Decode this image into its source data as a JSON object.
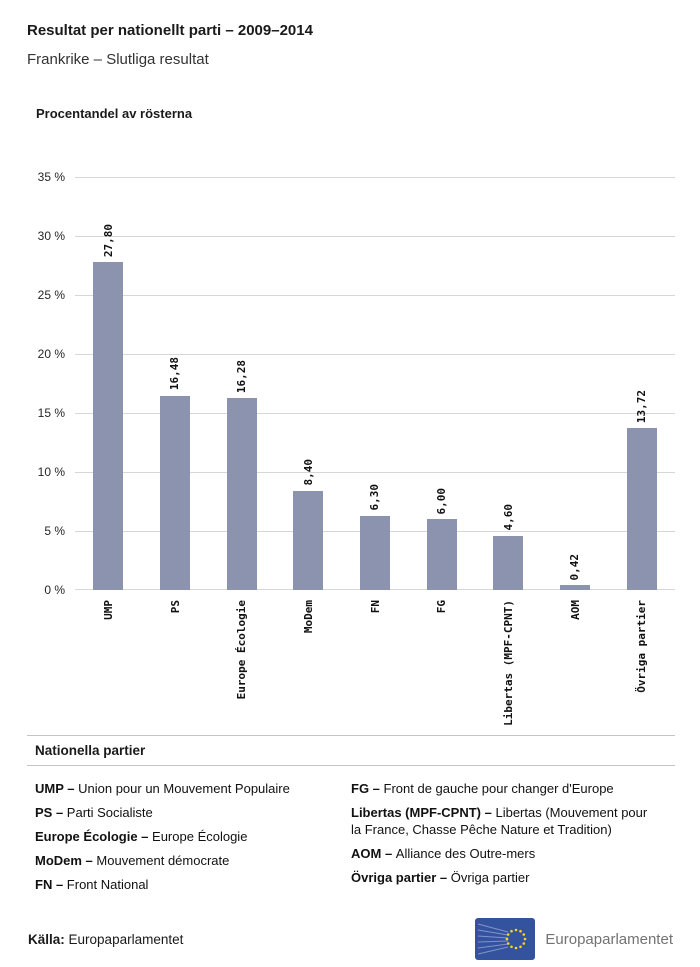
{
  "header": {
    "title": "Resultat per nationellt parti – 2009–2014",
    "subtitle": "Frankrike – Slutliga resultat"
  },
  "chart_data": {
    "type": "bar",
    "title": "Procentandel av rösterna",
    "categories": [
      "UMP",
      "PS",
      "Europe Écologie",
      "MoDem",
      "FN",
      "FG",
      "Libertas (MPF-CPNT)",
      "AOM",
      "Övriga partier"
    ],
    "values": [
      27.8,
      16.48,
      16.28,
      8.4,
      6.3,
      6.0,
      4.6,
      0.42,
      13.72
    ],
    "value_labels": [
      "27,80",
      "16,48",
      "16,28",
      "8,40",
      "6,30",
      "6,00",
      "4,60",
      "0,42",
      "13,72"
    ],
    "xlabel": "",
    "ylabel": "Procentandel av rösterna",
    "ylim": [
      0,
      35
    ],
    "ytick_step": 5,
    "ytick_labels": [
      "0 %",
      "5 %",
      "10 %",
      "15 %",
      "20 %",
      "25 %",
      "30 %",
      "35 %"
    ],
    "grid": true,
    "legend_position": "none",
    "bar_color": "#8c93af"
  },
  "legend": {
    "heading": "Nationella partier",
    "columns": [
      [
        {
          "term": "UMP –",
          "definition": "Union pour un Mouvement Populaire"
        },
        {
          "term": "PS –",
          "definition": "Parti Socialiste"
        },
        {
          "term": "Europe Écologie –",
          "definition": "Europe Écologie"
        },
        {
          "term": "MoDem –",
          "definition": "Mouvement démocrate"
        },
        {
          "term": "FN –",
          "definition": "Front National"
        }
      ],
      [
        {
          "term": "FG –",
          "definition": "Front de gauche pour changer d'Europe"
        },
        {
          "term": "Libertas (MPF-CPNT) –",
          "definition": "Libertas (Mouvement pour la France, Chasse Pêche Nature et Tradition)"
        },
        {
          "term": "AOM –",
          "definition": "Alliance des Outre-mers"
        },
        {
          "term": "Övriga partier –",
          "definition": "Övriga partier"
        }
      ]
    ]
  },
  "footer": {
    "source_label": "Källa:",
    "source_value": "Europaparlamentet",
    "logo_text": "Europaparlamentet"
  }
}
